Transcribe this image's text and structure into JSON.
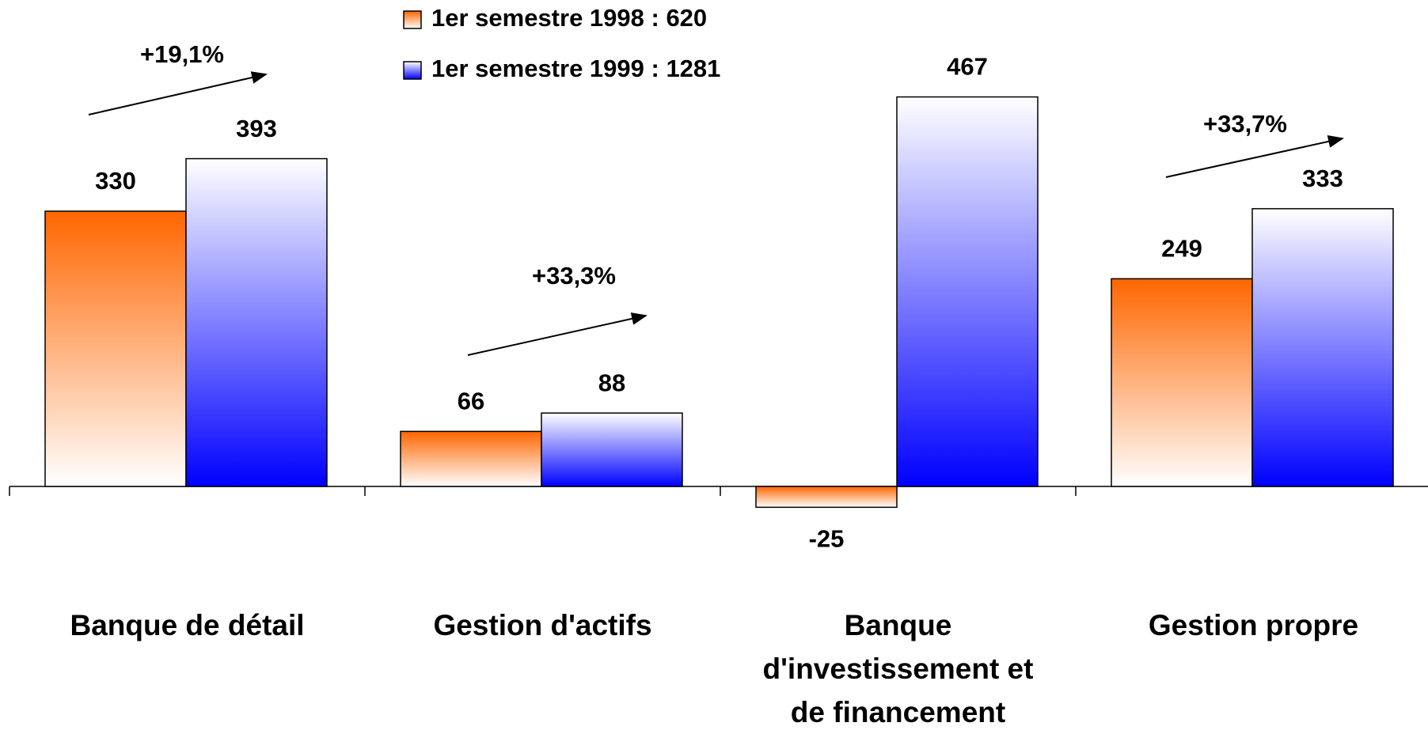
{
  "chart_data": {
    "type": "bar",
    "categories": [
      "Banque de détail",
      "Gestion d'actifs",
      "Banque d'investissement et de financement",
      "Gestion propre"
    ],
    "series": [
      {
        "name": "1er semestre 1998 : 620",
        "color": "#ff6600",
        "values": [
          330,
          66,
          -25,
          249
        ]
      },
      {
        "name": "1er semestre 1999 : 1281",
        "color": "#0000ff",
        "values": [
          393,
          88,
          467,
          333
        ]
      }
    ],
    "annotations": [
      "+19,1%",
      "+33,3%",
      "+33,7%"
    ]
  }
}
